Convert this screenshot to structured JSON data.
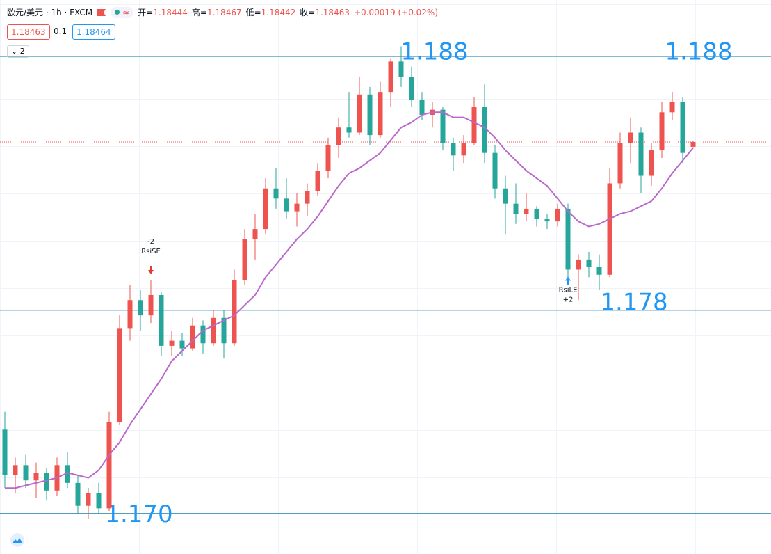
{
  "header": {
    "symbol": "欧元/美元 · 1h · FXCM",
    "ohlc": [
      {
        "label": "开=",
        "value": "1.18444"
      },
      {
        "label": "高=",
        "value": "1.18467"
      },
      {
        "label": "低=",
        "value": "1.18442"
      },
      {
        "label": "收=",
        "value": "1.18463"
      }
    ],
    "change": "+0.00019 (+0.02%)",
    "bid": "1.18463",
    "spread": "0.1",
    "ask": "1.18464",
    "indicators": "2"
  },
  "chart_data": {
    "type": "candlestick",
    "up_color": "#ef5350",
    "down_color": "#26a69a",
    "ylim": [
      1.1684,
      1.1894
    ],
    "open": [
      1.1733,
      1.1715,
      1.1719,
      1.1713,
      1.1716,
      1.1709,
      1.1719,
      1.1712,
      1.1703,
      1.1708,
      1.1702,
      1.1736,
      1.1773,
      1.1784,
      1.1778,
      1.1786,
      1.1766,
      1.1768,
      1.1765,
      1.1774,
      1.1767,
      1.1777,
      1.1767,
      1.1792,
      1.1808,
      1.1812,
      1.1828,
      1.1824,
      1.1819,
      1.1822,
      1.1827,
      1.1835,
      1.1845,
      1.1852,
      1.185,
      1.1865,
      1.1849,
      1.1866,
      1.1878,
      1.1872,
      1.1863,
      1.1857,
      1.1859,
      1.1846,
      1.1841,
      1.1846,
      1.186,
      1.1842,
      1.1828,
      1.1822,
      1.1818,
      1.182,
      1.1816,
      1.1815,
      1.182,
      1.1796,
      1.18,
      1.1797,
      1.1794,
      1.183,
      1.1846,
      1.185,
      1.1833,
      1.1843,
      1.1858,
      1.1862,
      1.18444
    ],
    "high": [
      1.174,
      1.1722,
      1.1723,
      1.172,
      1.1718,
      1.1722,
      1.1724,
      1.1715,
      1.171,
      1.1712,
      1.174,
      1.1778,
      1.179,
      1.1788,
      1.1792,
      1.1787,
      1.1772,
      1.1771,
      1.1777,
      1.1776,
      1.178,
      1.178,
      1.1796,
      1.1812,
      1.1818,
      1.1832,
      1.1836,
      1.1832,
      1.1826,
      1.183,
      1.1838,
      1.1848,
      1.1856,
      1.1866,
      1.1872,
      1.1868,
      1.187,
      1.1879,
      1.1884,
      1.1876,
      1.1866,
      1.1862,
      1.186,
      1.1848,
      1.1849,
      1.1864,
      1.1869,
      1.1845,
      1.1833,
      1.183,
      1.1826,
      1.1821,
      1.1818,
      1.1822,
      1.1822,
      1.1802,
      1.1803,
      1.1802,
      1.1836,
      1.185,
      1.1856,
      1.1852,
      1.1846,
      1.1862,
      1.1866,
      1.1864,
      1.18467
    ],
    "low": [
      1.171,
      1.1708,
      1.171,
      1.1706,
      1.1705,
      1.1707,
      1.171,
      1.17,
      1.1698,
      1.17,
      1.1701,
      1.1735,
      1.1768,
      1.1772,
      1.1775,
      1.1762,
      1.1762,
      1.1762,
      1.1764,
      1.1763,
      1.1766,
      1.1761,
      1.1766,
      1.179,
      1.18,
      1.181,
      1.182,
      1.1816,
      1.1813,
      1.1817,
      1.1825,
      1.1832,
      1.184,
      1.1848,
      1.1849,
      1.1845,
      1.1848,
      1.186,
      1.1868,
      1.186,
      1.1855,
      1.1852,
      1.1843,
      1.1835,
      1.1838,
      1.1845,
      1.1838,
      1.1824,
      1.181,
      1.1814,
      1.1815,
      1.1813,
      1.1812,
      1.1813,
      1.179,
      1.1784,
      1.1793,
      1.1788,
      1.1793,
      1.1828,
      1.1838,
      1.1826,
      1.1829,
      1.184,
      1.1855,
      1.1838,
      1.18442
    ],
    "close": [
      1.1715,
      1.1719,
      1.1713,
      1.1716,
      1.1709,
      1.1719,
      1.1712,
      1.1703,
      1.1708,
      1.1702,
      1.1736,
      1.1773,
      1.1784,
      1.1778,
      1.1786,
      1.1766,
      1.1768,
      1.1765,
      1.1774,
      1.1767,
      1.1777,
      1.1767,
      1.1792,
      1.1808,
      1.1812,
      1.1828,
      1.1824,
      1.1819,
      1.1822,
      1.1827,
      1.1835,
      1.1845,
      1.1852,
      1.185,
      1.1865,
      1.1849,
      1.1866,
      1.1878,
      1.1872,
      1.1863,
      1.1857,
      1.1859,
      1.1846,
      1.1841,
      1.1846,
      1.186,
      1.1842,
      1.1828,
      1.1822,
      1.1818,
      1.182,
      1.1816,
      1.1815,
      1.182,
      1.1796,
      1.18,
      1.1797,
      1.1794,
      1.183,
      1.1846,
      1.185,
      1.1833,
      1.1843,
      1.1858,
      1.1862,
      1.1842,
      1.18463
    ],
    "ma": {
      "color": "#b868c9",
      "values": [
        1.171,
        1.171,
        1.1711,
        1.1712,
        1.1713,
        1.1714,
        1.1716,
        1.1715,
        1.1714,
        1.1717,
        1.1723,
        1.1728,
        1.1735,
        1.1741,
        1.1747,
        1.1753,
        1.176,
        1.1764,
        1.1768,
        1.1772,
        1.1774,
        1.1776,
        1.1778,
        1.1782,
        1.1786,
        1.1793,
        1.1798,
        1.1803,
        1.1808,
        1.1812,
        1.1817,
        1.1823,
        1.1829,
        1.1834,
        1.1836,
        1.1839,
        1.1842,
        1.1847,
        1.1852,
        1.1854,
        1.1857,
        1.1858,
        1.1858,
        1.1856,
        1.1856,
        1.1854,
        1.1852,
        1.1848,
        1.1843,
        1.1839,
        1.1835,
        1.1832,
        1.1829,
        1.1824,
        1.1819,
        1.1815,
        1.1813,
        1.1814,
        1.1816,
        1.1818,
        1.1819,
        1.1821,
        1.1823,
        1.1828,
        1.1834,
        1.1839,
        1.1844
      ]
    },
    "hlines": [
      {
        "value": 1.188,
        "labels": [
          "1.188",
          "1.188"
        ]
      },
      {
        "value": 1.178,
        "labels": [
          "1.178"
        ]
      },
      {
        "value": 1.17,
        "labels": [
          "1.170"
        ]
      }
    ],
    "line_color": "#3a8fb7",
    "level_label_color": "#2196f3",
    "signals": [
      {
        "at": 14,
        "side": "short",
        "color": "#e53935",
        "labels": [
          "-2",
          "RsiSE"
        ]
      },
      {
        "at": 54,
        "side": "long",
        "color": "#2196f3",
        "labels": [
          "RsiLE",
          "+2"
        ]
      }
    ]
  }
}
